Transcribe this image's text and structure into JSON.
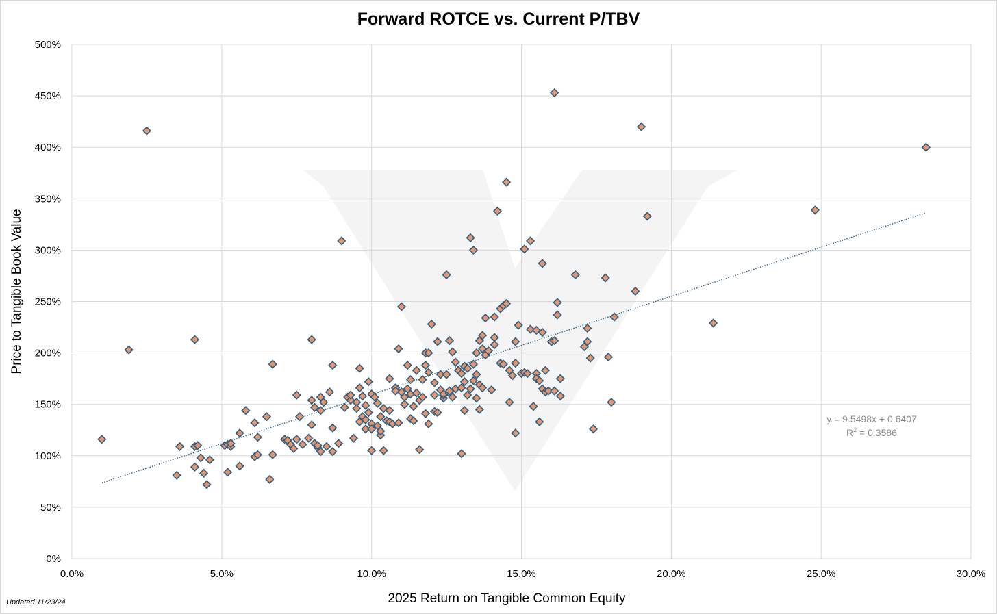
{
  "note": "Updated 11/23/24",
  "colors": {
    "marker_fill": "#e8956a",
    "marker_stroke": "#2e5f86",
    "trend": "#2e5f86",
    "grid": "#d9d9d9",
    "watermark": "#ebebeb"
  },
  "chart_data": {
    "type": "scatter",
    "title": "Forward ROTCE vs. Current P/TBV",
    "xlabel": "2025 Return on Tangible Common Equity",
    "ylabel": "Price to Tangible Book Value",
    "xlim": [
      0,
      0.3
    ],
    "ylim": [
      0,
      5.0
    ],
    "xticks": [
      0,
      0.05,
      0.1,
      0.15,
      0.2,
      0.25,
      0.3
    ],
    "xtick_labels": [
      "0.0%",
      "5.0%",
      "10.0%",
      "15.0%",
      "20.0%",
      "25.0%",
      "30.0%"
    ],
    "yticks": [
      0,
      0.5,
      1.0,
      1.5,
      2.0,
      2.5,
      3.0,
      3.5,
      4.0,
      4.5,
      5.0
    ],
    "ytick_labels": [
      "0%",
      "50%",
      "100%",
      "150%",
      "200%",
      "250%",
      "300%",
      "350%",
      "400%",
      "450%",
      "500%"
    ],
    "grid": true,
    "trendline": {
      "slope": 9.5498,
      "intercept": 0.6407,
      "x_range": [
        0.01,
        0.285
      ]
    },
    "trend_equation": "y = 9.5498x + 0.6407",
    "r2_prefix": "R",
    "r2_sup": "2",
    "r2_suffix": " = 0.3586",
    "points": [
      [
        0.01,
        1.16
      ],
      [
        0.019,
        2.03
      ],
      [
        0.025,
        4.16
      ],
      [
        0.035,
        0.81
      ],
      [
        0.036,
        1.09
      ],
      [
        0.041,
        2.13
      ],
      [
        0.041,
        1.09
      ],
      [
        0.041,
        0.89
      ],
      [
        0.042,
        1.1
      ],
      [
        0.043,
        0.98
      ],
      [
        0.044,
        0.83
      ],
      [
        0.045,
        0.72
      ],
      [
        0.046,
        0.96
      ],
      [
        0.051,
        1.1
      ],
      [
        0.052,
        1.11
      ],
      [
        0.052,
        0.84
      ],
      [
        0.053,
        1.09
      ],
      [
        0.053,
        1.12
      ],
      [
        0.056,
        1.22
      ],
      [
        0.056,
        0.9
      ],
      [
        0.058,
        1.44
      ],
      [
        0.061,
        1.32
      ],
      [
        0.061,
        0.99
      ],
      [
        0.062,
        1.18
      ],
      [
        0.062,
        1.01
      ],
      [
        0.065,
        1.38
      ],
      [
        0.066,
        0.77
      ],
      [
        0.067,
        1.89
      ],
      [
        0.067,
        1.01
      ],
      [
        0.071,
        1.16
      ],
      [
        0.072,
        1.15
      ],
      [
        0.073,
        1.11
      ],
      [
        0.074,
        1.07
      ],
      [
        0.075,
        1.59
      ],
      [
        0.075,
        1.16
      ],
      [
        0.076,
        1.38
      ],
      [
        0.077,
        1.11
      ],
      [
        0.079,
        1.17
      ],
      [
        0.08,
        2.13
      ],
      [
        0.08,
        1.54
      ],
      [
        0.08,
        1.3
      ],
      [
        0.081,
        1.12
      ],
      [
        0.081,
        1.47
      ],
      [
        0.082,
        1.08
      ],
      [
        0.082,
        1.1
      ],
      [
        0.083,
        1.57
      ],
      [
        0.083,
        1.44
      ],
      [
        0.083,
        1.04
      ],
      [
        0.084,
        1.52
      ],
      [
        0.085,
        1.09
      ],
      [
        0.086,
        1.62
      ],
      [
        0.087,
        1.88
      ],
      [
        0.087,
        1.27
      ],
      [
        0.087,
        1.04
      ],
      [
        0.089,
        1.12
      ],
      [
        0.09,
        3.09
      ],
      [
        0.091,
        1.47
      ],
      [
        0.092,
        1.57
      ],
      [
        0.093,
        1.54
      ],
      [
        0.093,
        1.59
      ],
      [
        0.094,
        1.17
      ],
      [
        0.095,
        1.52
      ],
      [
        0.095,
        1.46
      ],
      [
        0.096,
        1.66
      ],
      [
        0.096,
        1.85
      ],
      [
        0.096,
        1.33
      ],
      [
        0.097,
        1.58
      ],
      [
        0.097,
        1.38
      ],
      [
        0.098,
        1.49
      ],
      [
        0.098,
        1.35
      ],
      [
        0.098,
        1.26
      ],
      [
        0.099,
        1.42
      ],
      [
        0.099,
        1.72
      ],
      [
        0.1,
        1.31
      ],
      [
        0.1,
        1.6
      ],
      [
        0.1,
        1.26
      ],
      [
        0.1,
        1.05
      ],
      [
        0.101,
        1.57
      ],
      [
        0.102,
        1.29
      ],
      [
        0.102,
        1.51
      ],
      [
        0.103,
        1.2
      ],
      [
        0.103,
        1.24
      ],
      [
        0.103,
        1.38
      ],
      [
        0.104,
        1.46
      ],
      [
        0.104,
        1.05
      ],
      [
        0.105,
        1.34
      ],
      [
        0.106,
        1.75
      ],
      [
        0.106,
        1.44
      ],
      [
        0.106,
        1.33
      ],
      [
        0.107,
        1.31
      ],
      [
        0.108,
        1.66
      ],
      [
        0.108,
        1.63
      ],
      [
        0.109,
        1.32
      ],
      [
        0.109,
        2.04
      ],
      [
        0.11,
        2.45
      ],
      [
        0.11,
        1.62
      ],
      [
        0.111,
        1.57
      ],
      [
        0.111,
        1.5
      ],
      [
        0.112,
        1.65
      ],
      [
        0.112,
        1.88
      ],
      [
        0.113,
        1.6
      ],
      [
        0.113,
        1.74
      ],
      [
        0.113,
        1.36
      ],
      [
        0.114,
        1.34
      ],
      [
        0.114,
        1.48
      ],
      [
        0.115,
        1.83
      ],
      [
        0.115,
        1.61
      ],
      [
        0.116,
        1.54
      ],
      [
        0.116,
        1.06
      ],
      [
        0.117,
        1.57
      ],
      [
        0.117,
        1.74
      ],
      [
        0.118,
        2.0
      ],
      [
        0.118,
        1.41
      ],
      [
        0.118,
        1.88
      ],
      [
        0.119,
        1.81
      ],
      [
        0.119,
        1.31
      ],
      [
        0.119,
        2.0
      ],
      [
        0.12,
        2.28
      ],
      [
        0.121,
        1.71
      ],
      [
        0.121,
        1.43
      ],
      [
        0.121,
        1.59
      ],
      [
        0.122,
        2.11
      ],
      [
        0.122,
        1.42
      ],
      [
        0.123,
        1.79
      ],
      [
        0.123,
        1.64
      ],
      [
        0.124,
        1.56
      ],
      [
        0.124,
        1.59
      ],
      [
        0.124,
        1.6
      ],
      [
        0.125,
        1.79
      ],
      [
        0.125,
        2.76
      ],
      [
        0.126,
        1.61
      ],
      [
        0.126,
        2.12
      ],
      [
        0.126,
        1.63
      ],
      [
        0.127,
        1.57
      ],
      [
        0.127,
        2.01
      ],
      [
        0.128,
        1.91
      ],
      [
        0.128,
        1.65
      ],
      [
        0.129,
        1.83
      ],
      [
        0.13,
        1.66
      ],
      [
        0.13,
        1.8
      ],
      [
        0.13,
        1.02
      ],
      [
        0.131,
        1.72
      ],
      [
        0.131,
        1.87
      ],
      [
        0.131,
        1.44
      ],
      [
        0.132,
        1.85
      ],
      [
        0.132,
        1.59
      ],
      [
        0.133,
        1.65
      ],
      [
        0.133,
        3.12
      ],
      [
        0.134,
        3.0
      ],
      [
        0.134,
        1.73
      ],
      [
        0.134,
        1.89
      ],
      [
        0.135,
        2.0
      ],
      [
        0.135,
        1.79
      ],
      [
        0.135,
        1.56
      ],
      [
        0.136,
        2.12
      ],
      [
        0.136,
        1.69
      ],
      [
        0.136,
        1.45
      ],
      [
        0.137,
        2.17
      ],
      [
        0.137,
        2.04
      ],
      [
        0.137,
        1.66
      ],
      [
        0.138,
        1.98
      ],
      [
        0.138,
        2.34
      ],
      [
        0.139,
        2.02
      ],
      [
        0.14,
        1.64
      ],
      [
        0.141,
        2.35
      ],
      [
        0.141,
        2.15
      ],
      [
        0.141,
        2.08
      ],
      [
        0.142,
        3.38
      ],
      [
        0.143,
        1.9
      ],
      [
        0.143,
        2.43
      ],
      [
        0.144,
        1.89
      ],
      [
        0.144,
        2.46
      ],
      [
        0.145,
        2.48
      ],
      [
        0.145,
        3.66
      ],
      [
        0.146,
        1.83
      ],
      [
        0.146,
        1.52
      ],
      [
        0.147,
        1.78
      ],
      [
        0.148,
        2.11
      ],
      [
        0.148,
        1.22
      ],
      [
        0.148,
        1.9
      ],
      [
        0.149,
        2.27
      ],
      [
        0.15,
        1.8
      ],
      [
        0.151,
        3.01
      ],
      [
        0.151,
        1.81
      ],
      [
        0.152,
        1.8
      ],
      [
        0.153,
        2.23
      ],
      [
        0.153,
        3.09
      ],
      [
        0.154,
        1.48
      ],
      [
        0.155,
        2.22
      ],
      [
        0.155,
        1.8
      ],
      [
        0.155,
        1.75
      ],
      [
        0.156,
        1.33
      ],
      [
        0.156,
        1.73
      ],
      [
        0.157,
        2.2
      ],
      [
        0.157,
        2.87
      ],
      [
        0.157,
        1.65
      ],
      [
        0.158,
        1.62
      ],
      [
        0.158,
        1.83
      ],
      [
        0.159,
        1.63
      ],
      [
        0.16,
        2.11
      ],
      [
        0.161,
        4.53
      ],
      [
        0.161,
        2.12
      ],
      [
        0.161,
        1.63
      ],
      [
        0.162,
        2.49
      ],
      [
        0.162,
        2.37
      ],
      [
        0.163,
        1.75
      ],
      [
        0.163,
        1.58
      ],
      [
        0.168,
        2.76
      ],
      [
        0.171,
        2.06
      ],
      [
        0.172,
        2.24
      ],
      [
        0.172,
        2.11
      ],
      [
        0.173,
        1.95
      ],
      [
        0.174,
        1.26
      ],
      [
        0.178,
        2.73
      ],
      [
        0.179,
        1.96
      ],
      [
        0.18,
        1.52
      ],
      [
        0.181,
        2.35
      ],
      [
        0.188,
        2.6
      ],
      [
        0.19,
        4.2
      ],
      [
        0.192,
        3.33
      ],
      [
        0.214,
        2.29
      ],
      [
        0.248,
        3.39
      ],
      [
        0.285,
        4.0
      ]
    ]
  }
}
